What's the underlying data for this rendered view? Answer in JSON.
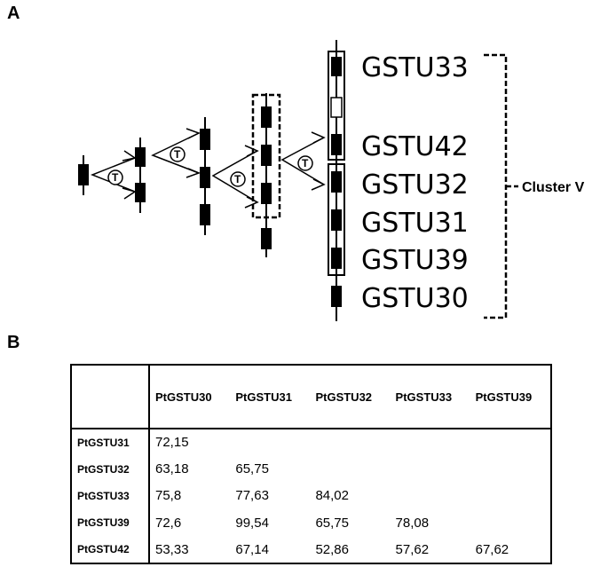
{
  "panels": {
    "a_label": "A",
    "b_label": "B"
  },
  "diagram": {
    "genes": [
      "GSTU33",
      "GSTU42",
      "GSTU32",
      "GSTU31",
      "GSTU39",
      "GSTU30"
    ],
    "cluster_label": "Cluster V",
    "event_symbol": "T"
  },
  "table": {
    "corner": "",
    "columns": [
      "PtGSTU30",
      "PtGSTU31",
      "PtGSTU32",
      "PtGSTU33",
      "PtGSTU39"
    ],
    "rows": [
      {
        "name": "PtGSTU31",
        "cells": [
          "72,15",
          "",
          "",
          "",
          ""
        ]
      },
      {
        "name": "PtGSTU32",
        "cells": [
          "63,18",
          "65,75",
          "",
          "",
          ""
        ]
      },
      {
        "name": "PtGSTU33",
        "cells": [
          "75,8",
          "77,63",
          "84,02",
          "",
          ""
        ]
      },
      {
        "name": "PtGSTU39",
        "cells": [
          "72,6",
          "99,54",
          "65,75",
          "78,08",
          ""
        ]
      },
      {
        "name": "PtGSTU42",
        "cells": [
          "53,33",
          "67,14",
          "52,86",
          "57,62",
          "67,62"
        ]
      }
    ]
  }
}
